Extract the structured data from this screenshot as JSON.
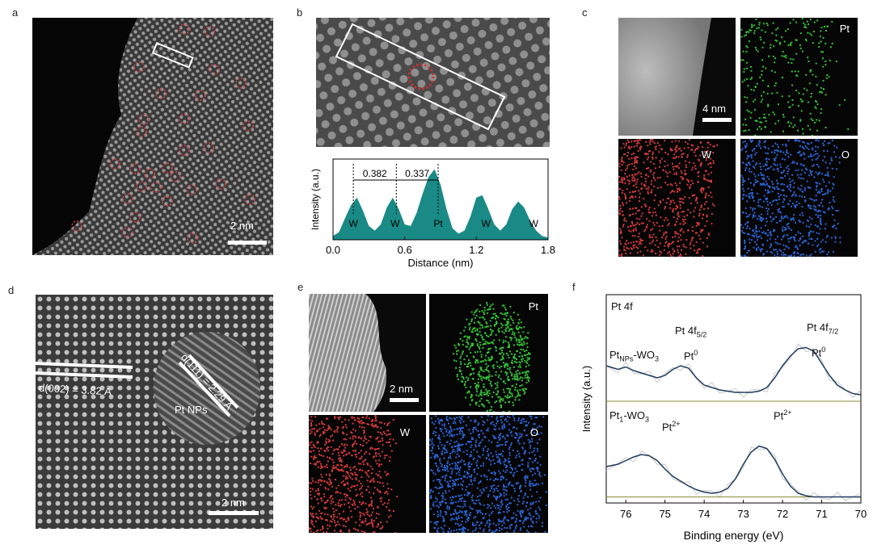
{
  "panels": {
    "a": {
      "label": "a",
      "scale": "2 nm"
    },
    "b": {
      "label": "b"
    },
    "c": {
      "label": "c",
      "scale": "4 nm",
      "maps": [
        "Pt",
        "W",
        "O"
      ]
    },
    "d": {
      "label": "d",
      "scale": "2 nm",
      "d002": "d(002) = 3.82 Å",
      "d111": "d(111) = 2.29 Å",
      "ptnps": "Pt NPs"
    },
    "e": {
      "label": "e",
      "scale": "2 nm",
      "maps": [
        "Pt",
        "W",
        "O"
      ]
    },
    "f": {
      "label": "f",
      "inset_title": "Pt 4f",
      "peak_52": "Pt 4f",
      "peak_52_sub": "5/2",
      "peak_72": "Pt 4f",
      "peak_72_sub": "7/2",
      "pt0": "Pt",
      "pt0_sup": "0",
      "pt2": "Pt",
      "pt2_sup": "2+",
      "series1": "Pt",
      "series1_sub": "NPs",
      "series1_tail": "-WO",
      "series1_tail_sub": "3",
      "series2": "Pt",
      "series2_sub": "1",
      "series2_tail": "-WO",
      "series2_tail_sub": "3"
    }
  },
  "colors": {
    "teal": "#1a8a86",
    "red": "#d63a3a",
    "green": "#35c335",
    "blue": "#2b64d8",
    "navy": "#1f3b5c"
  },
  "chart_data": [
    {
      "type": "area",
      "panel": "b",
      "xlabel": "Distance (nm)",
      "ylabel": "Intensity (a.u.)",
      "xlim": [
        0.0,
        1.8
      ],
      "xticks": [
        "0.0",
        "0.6",
        "1.2",
        "1.8"
      ],
      "x": [
        0.0,
        0.05,
        0.1,
        0.15,
        0.2,
        0.25,
        0.3,
        0.35,
        0.4,
        0.45,
        0.5,
        0.55,
        0.6,
        0.65,
        0.7,
        0.75,
        0.8,
        0.85,
        0.9,
        0.95,
        1.0,
        1.05,
        1.1,
        1.15,
        1.2,
        1.25,
        1.3,
        1.35,
        1.4,
        1.45,
        1.5,
        1.55,
        1.6,
        1.65,
        1.7,
        1.75,
        1.8
      ],
      "y": [
        0.05,
        0.1,
        0.28,
        0.45,
        0.55,
        0.38,
        0.18,
        0.12,
        0.2,
        0.42,
        0.55,
        0.4,
        0.2,
        0.18,
        0.35,
        0.6,
        0.82,
        0.92,
        0.72,
        0.4,
        0.15,
        0.08,
        0.12,
        0.3,
        0.55,
        0.58,
        0.4,
        0.2,
        0.12,
        0.2,
        0.4,
        0.5,
        0.42,
        0.25,
        0.12,
        0.05,
        0.03
      ],
      "peak_labels": [
        {
          "x": 0.17,
          "text": "W"
        },
        {
          "x": 0.52,
          "text": "W"
        },
        {
          "x": 0.88,
          "text": "Pt"
        },
        {
          "x": 1.28,
          "text": "W"
        },
        {
          "x": 1.68,
          "text": "W"
        }
      ],
      "distances": [
        "0.382",
        "0.337"
      ]
    },
    {
      "type": "line",
      "panel": "f",
      "xlabel": "Binding energy (eV)",
      "ylabel": "Intensity (a.u.)",
      "xlim": [
        76.5,
        70
      ],
      "xticks": [
        "76",
        "75",
        "74",
        "73",
        "72",
        "71",
        "70"
      ],
      "series": [
        {
          "name": "Pt NPs-WO3",
          "x": [
            76.5,
            76.2,
            76.0,
            75.8,
            75.6,
            75.4,
            75.2,
            75.0,
            74.8,
            74.6,
            74.4,
            74.2,
            74.0,
            73.8,
            73.6,
            73.4,
            73.2,
            73.0,
            72.8,
            72.6,
            72.4,
            72.2,
            72.0,
            71.8,
            71.6,
            71.4,
            71.2,
            71.0,
            70.8,
            70.6,
            70.4,
            70.2,
            70.0
          ],
          "y": [
            0.58,
            0.55,
            0.57,
            0.54,
            0.52,
            0.5,
            0.48,
            0.5,
            0.55,
            0.58,
            0.56,
            0.48,
            0.42,
            0.4,
            0.38,
            0.37,
            0.36,
            0.36,
            0.36,
            0.37,
            0.4,
            0.48,
            0.58,
            0.66,
            0.72,
            0.73,
            0.7,
            0.6,
            0.5,
            0.42,
            0.38,
            0.35,
            0.34
          ]
        },
        {
          "name": "Pt1-WO3",
          "x": [
            76.5,
            76.2,
            76.0,
            75.8,
            75.6,
            75.4,
            75.2,
            75.0,
            74.8,
            74.6,
            74.4,
            74.2,
            74.0,
            73.8,
            73.6,
            73.4,
            73.2,
            73.0,
            72.8,
            72.6,
            72.4,
            72.2,
            72.0,
            71.8,
            71.6,
            71.4,
            71.2,
            71.0,
            70.8,
            70.6,
            70.4,
            70.2,
            70.0
          ],
          "y": [
            0.28,
            0.3,
            0.33,
            0.36,
            0.38,
            0.37,
            0.33,
            0.26,
            0.2,
            0.16,
            0.12,
            0.09,
            0.07,
            0.06,
            0.07,
            0.1,
            0.18,
            0.3,
            0.4,
            0.45,
            0.43,
            0.34,
            0.22,
            0.12,
            0.06,
            0.04,
            0.03,
            0.03,
            0.03,
            0.03,
            0.03,
            0.03,
            0.03
          ]
        }
      ]
    }
  ]
}
